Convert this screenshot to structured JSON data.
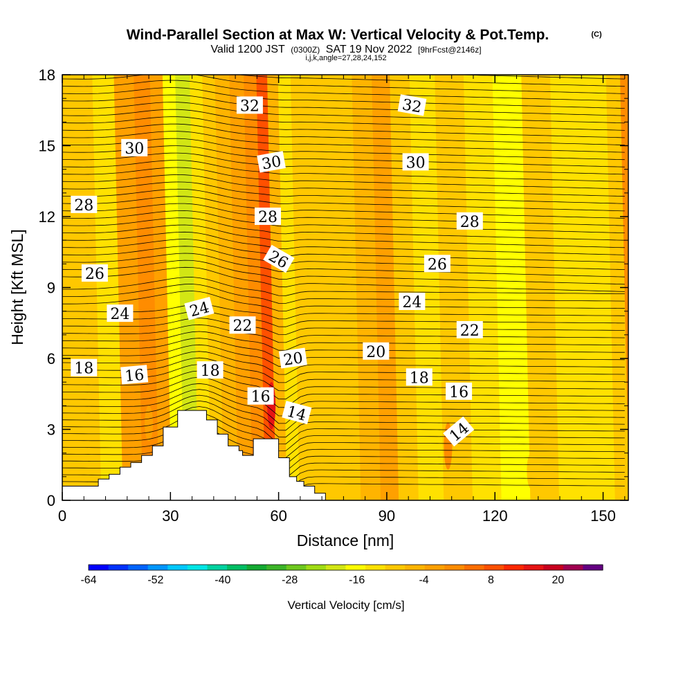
{
  "title": "Wind-Parallel Section at Max W: Vertical Velocity & Pot.Temp.",
  "copyright": "(C)",
  "subtitle_parts": [
    "Valid 1200 JST",
    "(0300Z)",
    "SAT 19 Nov 2022",
    "[9hrFcst@2146z]"
  ],
  "subtitle2": "i,j,k,angle=27,28,24,152",
  "chart_data": {
    "type": "heatmap",
    "description_note": "",
    "xlabel": "Distance [nm]",
    "ylabel": "Height [Kft MSL]",
    "xlim": [
      0,
      157
    ],
    "ylim": [
      0,
      18
    ],
    "xticks": [
      0,
      30,
      60,
      90,
      120,
      150
    ],
    "yticks": [
      0,
      3,
      6,
      9,
      12,
      15,
      18
    ],
    "colorbar": {
      "label": "Vertical Velocity [cm/s]",
      "tick_labels": [
        "-64",
        "-52",
        "-40",
        "-28",
        "-16",
        "-4",
        "8",
        "20"
      ],
      "tick_values": [
        -64,
        -52,
        -40,
        -28,
        -16,
        -4,
        8,
        20
      ],
      "min": -64,
      "max": 28,
      "step": 4,
      "colors": [
        "#0000ff",
        "#0032ff",
        "#0064ff",
        "#0096ff",
        "#00c8ff",
        "#00e6e6",
        "#00d2a0",
        "#00be64",
        "#14aa32",
        "#3cb428",
        "#6ec81e",
        "#a0dc14",
        "#d2e614",
        "#ffff00",
        "#ffe100",
        "#ffc800",
        "#ffb400",
        "#ffa000",
        "#ff8c00",
        "#ff6e00",
        "#ff5000",
        "#ff2800",
        "#e61414",
        "#c8001e",
        "#a00050",
        "#640082"
      ]
    },
    "velocity_bands": [
      {
        "x": 0,
        "w": -3
      },
      {
        "x": 8,
        "w": -2
      },
      {
        "x": 14,
        "w": -5
      },
      {
        "x": 20,
        "w": 4
      },
      {
        "x": 25,
        "w": 9
      },
      {
        "x": 29,
        "w": 5
      },
      {
        "x": 32,
        "w": -10
      },
      {
        "x": 36,
        "w": -13
      },
      {
        "x": 40,
        "w": -6
      },
      {
        "x": 43,
        "w": -3
      },
      {
        "x": 47,
        "w": 2
      },
      {
        "x": 51,
        "w": 6
      },
      {
        "x": 55,
        "w": 10
      },
      {
        "x": 58,
        "w": 17
      },
      {
        "x": 61,
        "w": 3
      },
      {
        "x": 64,
        "w": -8
      },
      {
        "x": 68,
        "w": -4
      },
      {
        "x": 74,
        "w": -1
      },
      {
        "x": 80,
        "w": -4
      },
      {
        "x": 86,
        "w": 0
      },
      {
        "x": 91,
        "w": 7
      },
      {
        "x": 96,
        "w": -2
      },
      {
        "x": 102,
        "w": -7
      },
      {
        "x": 110,
        "w": -3
      },
      {
        "x": 118,
        "w": -6
      },
      {
        "x": 126,
        "w": -9
      },
      {
        "x": 134,
        "w": -4
      },
      {
        "x": 142,
        "w": -8
      },
      {
        "x": 150,
        "w": -5
      },
      {
        "x": 157,
        "w": -4
      }
    ],
    "low_level_cells": [
      {
        "x": 107,
        "y_bot": 1.3,
        "y_top": 3.3,
        "w": 8
      },
      {
        "x": 58,
        "y_bot": 3.0,
        "y_top": 5.0,
        "w": 24
      },
      {
        "x": 24,
        "y_bot": 2.5,
        "y_top": 4.0,
        "w": 6
      },
      {
        "x": 80,
        "y_bot": 0.5,
        "y_top": 2.6,
        "w": -1
      },
      {
        "x": 130,
        "y_bot": 0.5,
        "y_top": 2.0,
        "w": -1
      }
    ],
    "terrain_profile": [
      [
        0,
        0.6
      ],
      [
        9,
        0.6
      ],
      [
        10,
        0.9
      ],
      [
        13,
        1.1
      ],
      [
        16,
        1.4
      ],
      [
        19,
        1.6
      ],
      [
        22,
        1.9
      ],
      [
        25,
        2.3
      ],
      [
        28,
        3.1
      ],
      [
        32,
        3.8
      ],
      [
        36,
        3.8
      ],
      [
        40,
        3.4
      ],
      [
        43,
        2.8
      ],
      [
        46,
        2.3
      ],
      [
        49,
        2.1
      ],
      [
        50,
        1.9
      ],
      [
        52,
        1.9
      ],
      [
        53,
        2.6
      ],
      [
        59,
        2.6
      ],
      [
        60,
        1.8
      ],
      [
        62,
        1.8
      ],
      [
        63,
        1.0
      ],
      [
        65,
        0.8
      ],
      [
        67,
        0.6
      ],
      [
        70,
        0.3
      ],
      [
        72,
        0.3
      ],
      [
        73,
        0.3
      ]
    ],
    "isentropes": [
      {
        "theta": 14,
        "label_pts": [
          [
            65,
            3.7,
            15
          ],
          [
            110,
            2.9,
            -40
          ]
        ]
      },
      {
        "theta": 16,
        "label_pts": [
          [
            20,
            5.3,
            -5
          ],
          [
            55,
            4.4,
            0
          ],
          [
            110,
            4.6,
            0
          ]
        ]
      },
      {
        "theta": 18,
        "label_pts": [
          [
            6,
            5.6,
            0
          ],
          [
            41,
            5.5,
            0
          ],
          [
            99,
            5.2,
            0
          ]
        ]
      },
      {
        "theta": 20,
        "label_pts": [
          [
            64,
            6.0,
            -8
          ],
          [
            87,
            6.3,
            0
          ]
        ]
      },
      {
        "theta": 22,
        "label_pts": [
          [
            50,
            7.4,
            0
          ],
          [
            113,
            7.2,
            0
          ]
        ]
      },
      {
        "theta": 24,
        "label_pts": [
          [
            16,
            7.9,
            0
          ],
          [
            38,
            8.1,
            -15
          ],
          [
            97,
            8.4,
            0
          ]
        ]
      },
      {
        "theta": 26,
        "label_pts": [
          [
            9,
            9.6,
            0
          ],
          [
            60,
            10.2,
            30
          ],
          [
            104,
            10.0,
            0
          ]
        ]
      },
      {
        "theta": 28,
        "label_pts": [
          [
            6,
            12.5,
            0
          ],
          [
            57,
            12.0,
            0
          ],
          [
            113,
            11.8,
            0
          ]
        ]
      },
      {
        "theta": 30,
        "label_pts": [
          [
            20,
            14.9,
            0
          ],
          [
            58,
            14.3,
            -10
          ],
          [
            98,
            14.3,
            0
          ]
        ]
      },
      {
        "theta": 32,
        "label_pts": [
          [
            52,
            16.7,
            0
          ],
          [
            97,
            16.7,
            10
          ]
        ]
      }
    ]
  }
}
